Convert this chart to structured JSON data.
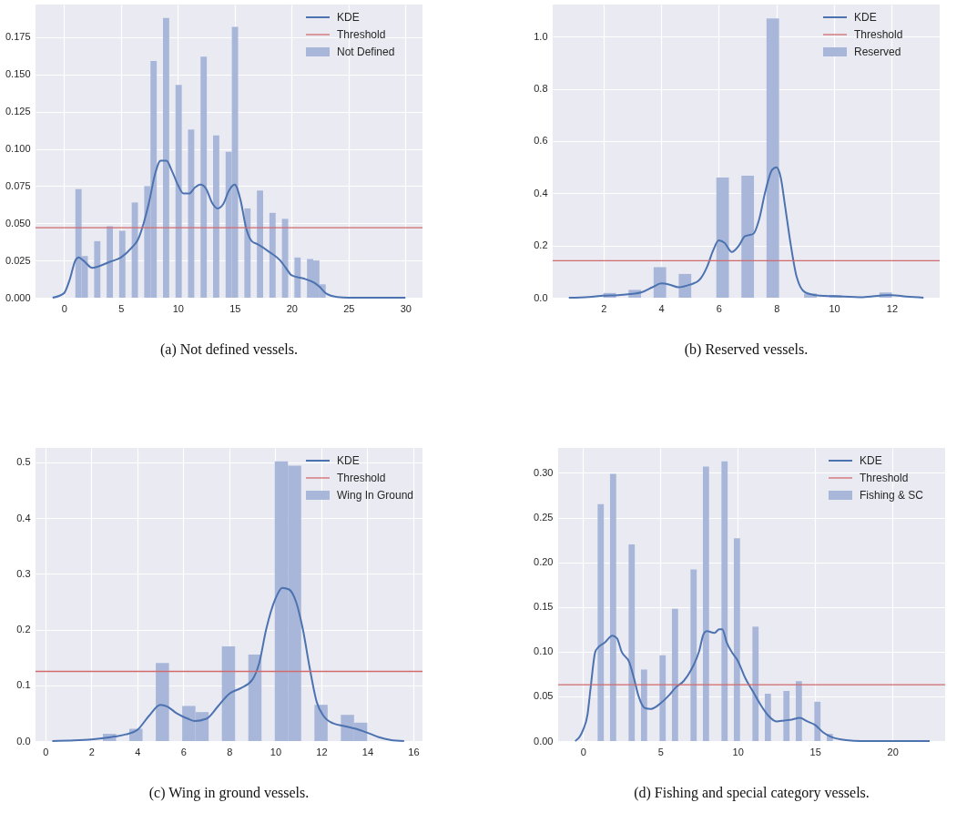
{
  "chart_data": [
    {
      "type": "histogram",
      "title": "(a) Not defined vessels.",
      "legend": "top right",
      "grid": true,
      "xlim": [
        -2.5,
        31.5
      ],
      "xticks": [
        0,
        5,
        10,
        15,
        20,
        25,
        30
      ],
      "ylim": [
        0,
        0.197
      ],
      "yticks": [
        {
          "value": 0,
          "label": "0.000"
        },
        0.025,
        {
          "value": 0.05,
          "label": "0.050"
        },
        0.075,
        {
          "value": 0.1,
          "label": "0.100"
        },
        0.125,
        {
          "value": 0.15,
          "label": "0.150"
        },
        0.175
      ],
      "bins": [
        1,
        1.55,
        2.1,
        2.65,
        3.2,
        3.75,
        4.3,
        4.85,
        5.4,
        5.95,
        6.5,
        7.05,
        7.6,
        8.15,
        8.7,
        9.25,
        9.8,
        10.35,
        10.9,
        11.45,
        12,
        12.55,
        13.1,
        13.65,
        14.2,
        14.75,
        15.3,
        15.85,
        16.4,
        16.95,
        17.5,
        18.05,
        18.6,
        19.15,
        19.7,
        20.25,
        20.8,
        21.35,
        21.9,
        22.45,
        23
      ],
      "series": [
        {
          "name": "KDE",
          "type": "line",
          "color": "#4c72b0",
          "x": [
            -1,
            0,
            0.5,
            1,
            1.3,
            1.7,
            2.5,
            3,
            4,
            5,
            6,
            6.5,
            7,
            7.5,
            8,
            8.5,
            9,
            9.5,
            10,
            10.5,
            11,
            11.5,
            12,
            12.5,
            13,
            13.5,
            14,
            14.5,
            15,
            15.5,
            16,
            16.5,
            17,
            18,
            19,
            19.5,
            20,
            21,
            22,
            22.5,
            23,
            24,
            25,
            30
          ],
          "values": [
            0,
            0.003,
            0.012,
            0.025,
            0.027,
            0.025,
            0.02,
            0.021,
            0.024,
            0.027,
            0.034,
            0.039,
            0.05,
            0.065,
            0.083,
            0.092,
            0.092,
            0.085,
            0.076,
            0.07,
            0.07,
            0.074,
            0.076,
            0.073,
            0.064,
            0.06,
            0.063,
            0.072,
            0.076,
            0.066,
            0.047,
            0.038,
            0.036,
            0.031,
            0.025,
            0.02,
            0.015,
            0.013,
            0.01,
            0.007,
            0.003,
            0.0005,
            0,
            0
          ]
        },
        {
          "name": "Not Defined",
          "color": "#a8b7d9",
          "values": [
            0.073,
            0.028,
            0,
            0.038,
            0,
            0.048,
            0,
            0.045,
            0,
            0.064,
            0,
            0.075,
            0.159,
            0,
            0.188,
            0,
            0.143,
            0,
            0.113,
            0,
            0.162,
            0,
            0.109,
            0,
            0.098,
            0.182,
            0,
            0.06,
            0,
            0.072,
            0,
            0.057,
            0,
            0.053,
            0,
            0.027,
            0,
            0.026,
            0.025,
            0.009
          ]
        }
      ],
      "ref_lines": [
        {
          "axis": "y",
          "value": 0.047,
          "label": "Threshold",
          "color": "#d16a6c"
        }
      ]
    },
    {
      "type": "histogram",
      "title": "(b) Reserved vessels.",
      "legend": "top right",
      "grid": true,
      "xlim": [
        0.24,
        13.66
      ],
      "xticks": [
        2,
        4,
        6,
        8,
        10,
        12
      ],
      "ylim": [
        0,
        1.123
      ],
      "yticks": [
        {
          "value": 0,
          "label": "0.0"
        },
        0.2,
        0.4,
        0.6,
        0.8,
        {
          "value": 1,
          "label": "1.0"
        }
      ],
      "bins": [
        2,
        2.435,
        2.87,
        3.305,
        3.74,
        4.175,
        4.61,
        5.045,
        5.48,
        5.915,
        6.35,
        6.785,
        7.22,
        7.655,
        8.09,
        8.525,
        8.96,
        9.395,
        9.83,
        10.265,
        10.7,
        11.135,
        11.57,
        12.005
      ],
      "series": [
        {
          "name": "KDE",
          "type": "line",
          "color": "#4c72b0",
          "x": [
            0.8,
            1.5,
            2,
            2.5,
            3,
            3.3,
            3.7,
            4,
            4.3,
            4.6,
            5,
            5.3,
            5.6,
            5.8,
            6,
            6.2,
            6.45,
            6.7,
            6.9,
            7.2,
            7.4,
            7.6,
            7.85,
            8,
            8.15,
            8.3,
            8.5,
            8.7,
            9,
            9.5,
            10,
            11,
            11.8,
            12,
            12.5,
            13.1
          ],
          "values": [
            0,
            0.003,
            0.008,
            0.01,
            0.015,
            0.02,
            0.04,
            0.055,
            0.05,
            0.04,
            0.05,
            0.065,
            0.12,
            0.18,
            0.22,
            0.21,
            0.175,
            0.2,
            0.235,
            0.245,
            0.3,
            0.4,
            0.49,
            0.5,
            0.46,
            0.35,
            0.2,
            0.08,
            0.02,
            0.008,
            0.006,
            0.002,
            0.01,
            0.01,
            0.004,
            0
          ]
        },
        {
          "name": "Reserved",
          "color": "#a8b7d9",
          "values": [
            0.018,
            0,
            0.03,
            0,
            0.117,
            0,
            0.091,
            0,
            0,
            0.46,
            0,
            0.467,
            0,
            1.07,
            0,
            0,
            0.016,
            0,
            0.01,
            0,
            0,
            0,
            0.02
          ]
        }
      ],
      "ref_lines": [
        {
          "axis": "y",
          "value": 0.142,
          "label": "Threshold",
          "color": "#d16a6c"
        }
      ]
    },
    {
      "type": "histogram",
      "title": "(c) Wing in ground vessels.",
      "legend": "top right",
      "grid": true,
      "xlim": [
        -0.43,
        16.4
      ],
      "xticks": [
        0,
        2,
        4,
        6,
        8,
        10,
        12,
        14,
        16
      ],
      "ylim": [
        0,
        0.526
      ],
      "yticks": [
        {
          "value": 0,
          "label": "0.0"
        },
        0.1,
        0.2,
        0.3,
        0.4,
        0.5
      ],
      "bins": [
        2.5,
        3.075,
        3.65,
        4.225,
        4.8,
        5.375,
        5.95,
        6.525,
        7.1,
        7.675,
        8.25,
        8.825,
        9.4,
        9.975,
        10.55,
        11.125,
        11.7,
        12.275,
        12.85,
        13.425,
        14
      ],
      "series": [
        {
          "name": "KDE",
          "type": "line",
          "color": "#4c72b0",
          "x": [
            0.3,
            1,
            2,
            3,
            3.5,
            4,
            4.5,
            5,
            5.3,
            5.7,
            6.2,
            6.5,
            7,
            7.5,
            8,
            8.5,
            9,
            9.3,
            9.6,
            10,
            10.3,
            10.6,
            10.9,
            11.2,
            11.5,
            11.8,
            12.1,
            12.5,
            13,
            13.5,
            14,
            14.5,
            15,
            15.6
          ],
          "values": [
            0,
            0.001,
            0.003,
            0.008,
            0.012,
            0.02,
            0.045,
            0.065,
            0.062,
            0.05,
            0.04,
            0.036,
            0.04,
            0.062,
            0.085,
            0.095,
            0.11,
            0.14,
            0.2,
            0.255,
            0.275,
            0.272,
            0.25,
            0.2,
            0.13,
            0.07,
            0.045,
            0.032,
            0.027,
            0.022,
            0.015,
            0.007,
            0.002,
            0
          ]
        },
        {
          "name": "Wing In Ground",
          "color": "#a8b7d9",
          "values": [
            0.013,
            0,
            0.022,
            0,
            0.14,
            0,
            0.063,
            0.052,
            0,
            0.17,
            0,
            0.155,
            0,
            0.502,
            0.494,
            0,
            0.065,
            0,
            0.047,
            0.033
          ]
        }
      ],
      "ref_lines": [
        {
          "axis": "y",
          "value": 0.125,
          "label": "Threshold",
          "color": "#d16a6c"
        }
      ]
    },
    {
      "type": "histogram",
      "title": "(d) Fishing and special category vessels.",
      "legend": "top right",
      "grid": true,
      "xlim": [
        -1.6,
        23.4
      ],
      "xticks": [
        0,
        5,
        10,
        15,
        20
      ],
      "ylim": [
        0,
        0.328
      ],
      "yticks": [
        {
          "value": 0,
          "label": "0.00"
        },
        0.05,
        {
          "value": 0.1,
          "label": "0.10"
        },
        0.15,
        {
          "value": 0.2,
          "label": "0.20"
        },
        0.25,
        {
          "value": 0.3,
          "label": "0.30"
        }
      ],
      "bins": [
        0.95,
        1.35,
        1.75,
        2.15,
        2.55,
        2.95,
        3.35,
        3.75,
        4.15,
        4.55,
        4.95,
        5.35,
        5.75,
        6.15,
        6.55,
        6.95,
        7.35,
        7.75,
        8.15,
        8.55,
        8.95,
        9.35,
        9.75,
        10.15,
        10.55,
        10.95,
        11.35,
        11.75,
        12.15,
        12.55,
        12.95,
        13.35,
        13.75,
        14.15,
        14.55,
        14.95,
        15.35,
        15.75,
        16.15
      ],
      "series": [
        {
          "name": "KDE",
          "type": "line",
          "color": "#4c72b0",
          "x": [
            -0.5,
            -0.2,
            0,
            0.3,
            0.5,
            0.8,
            1,
            1.4,
            1.9,
            2.2,
            2.5,
            3,
            3.3,
            3.6,
            4,
            4.4,
            5,
            5.5,
            6,
            6.5,
            7,
            7.5,
            7.8,
            8,
            8.5,
            8.8,
            9,
            9.3,
            9.6,
            10,
            10.5,
            11,
            11.5,
            12,
            12.5,
            13,
            13.5,
            14,
            14.5,
            15,
            15.5,
            16,
            17,
            18,
            22.4
          ],
          "values": [
            0,
            0.005,
            0.012,
            0.03,
            0.06,
            0.1,
            0.105,
            0.11,
            0.118,
            0.115,
            0.1,
            0.088,
            0.07,
            0.05,
            0.037,
            0.036,
            0.042,
            0.05,
            0.06,
            0.067,
            0.08,
            0.1,
            0.12,
            0.123,
            0.121,
            0.125,
            0.125,
            0.11,
            0.1,
            0.09,
            0.07,
            0.055,
            0.04,
            0.028,
            0.022,
            0.023,
            0.024,
            0.026,
            0.022,
            0.018,
            0.01,
            0.005,
            0.001,
            0,
            0
          ]
        },
        {
          "name": "Fishing & SC",
          "color": "#a8b7d9",
          "values": [
            0.265,
            0,
            0.299,
            0,
            0,
            0.22,
            0,
            0.08,
            0,
            0,
            0.096,
            0,
            0.148,
            0,
            0,
            0.192,
            0,
            0.307,
            0,
            0,
            0.313,
            0,
            0.227,
            0,
            0,
            0.128,
            0,
            0.053,
            0,
            0,
            0.056,
            0,
            0.067,
            0,
            0,
            0.044,
            0,
            0.008
          ]
        }
      ],
      "ref_lines": [
        {
          "axis": "y",
          "value": 0.063,
          "label": "Threshold",
          "color": "#d16a6c"
        }
      ]
    }
  ]
}
